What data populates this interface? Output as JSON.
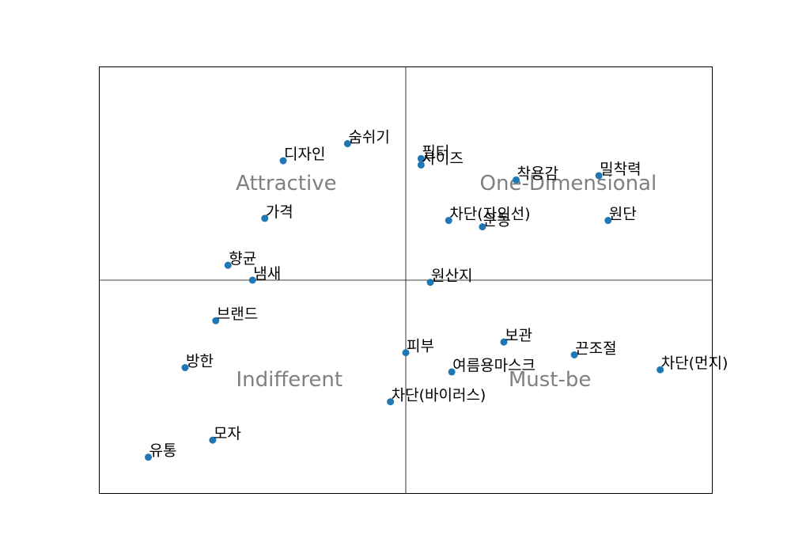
{
  "chart_data": {
    "type": "scatter",
    "title": "",
    "xlabel": "",
    "ylabel": "",
    "axes_visible": false,
    "xlim": [
      -1,
      1
    ],
    "ylim": [
      -1,
      1
    ],
    "divider_lines": {
      "x": 0,
      "y": 0
    },
    "marker_color": "#1f77b4",
    "quadrant_label_color": "#808080",
    "quadrant_labels": [
      {
        "text": "Attractive",
        "x": -0.39,
        "y": 0.45
      },
      {
        "text": "One-Dimensional",
        "x": 0.53,
        "y": 0.45
      },
      {
        "text": "Indifferent",
        "x": -0.38,
        "y": -0.47
      },
      {
        "text": "Must-be",
        "x": 0.47,
        "y": -0.47
      }
    ],
    "points": [
      {
        "label": "숨쉬기",
        "x": -0.19,
        "y": 0.64
      },
      {
        "label": "디자인",
        "x": -0.4,
        "y": 0.56
      },
      {
        "label": "필터",
        "x": 0.05,
        "y": 0.57
      },
      {
        "label": "사이즈",
        "x": 0.05,
        "y": 0.54
      },
      {
        "label": "착용감",
        "x": 0.36,
        "y": 0.47
      },
      {
        "label": "밀착력",
        "x": 0.63,
        "y": 0.49
      },
      {
        "label": "가격",
        "x": -0.46,
        "y": 0.29
      },
      {
        "label": "차단(자외선)",
        "x": 0.14,
        "y": 0.28
      },
      {
        "label": "운동",
        "x": 0.25,
        "y": 0.25
      },
      {
        "label": "원단",
        "x": 0.66,
        "y": 0.28
      },
      {
        "label": "향균",
        "x": -0.58,
        "y": 0.07
      },
      {
        "label": "냄새",
        "x": -0.5,
        "y": 0.0
      },
      {
        "label": "원산지",
        "x": 0.08,
        "y": -0.01
      },
      {
        "label": "브랜드",
        "x": -0.62,
        "y": -0.19
      },
      {
        "label": "보관",
        "x": 0.32,
        "y": -0.29
      },
      {
        "label": "끈조절",
        "x": 0.55,
        "y": -0.35
      },
      {
        "label": "피부",
        "x": 0.0,
        "y": -0.34
      },
      {
        "label": "방한",
        "x": -0.72,
        "y": -0.41
      },
      {
        "label": "여름용마스크",
        "x": 0.15,
        "y": -0.43
      },
      {
        "label": "차단(먼지)",
        "x": 0.83,
        "y": -0.42
      },
      {
        "label": "차단(바이러스)",
        "x": -0.05,
        "y": -0.57
      },
      {
        "label": "모자",
        "x": -0.63,
        "y": -0.75
      },
      {
        "label": "유통",
        "x": -0.84,
        "y": -0.83
      }
    ]
  }
}
